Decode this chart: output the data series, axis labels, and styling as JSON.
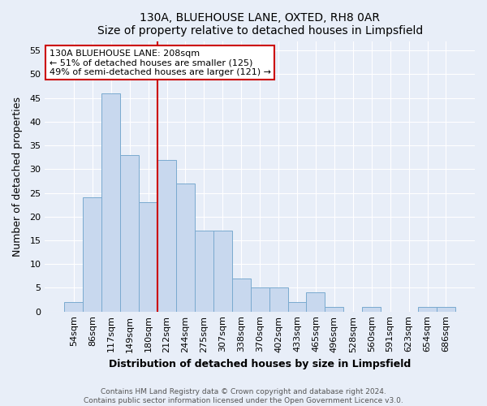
{
  "title": "130A, BLUEHOUSE LANE, OXTED, RH8 0AR",
  "subtitle": "Size of property relative to detached houses in Limpsfield",
  "xlabel": "Distribution of detached houses by size in Limpsfield",
  "ylabel": "Number of detached properties",
  "categories": [
    "54sqm",
    "86sqm",
    "117sqm",
    "149sqm",
    "180sqm",
    "212sqm",
    "244sqm",
    "275sqm",
    "307sqm",
    "338sqm",
    "370sqm",
    "402sqm",
    "433sqm",
    "465sqm",
    "496sqm",
    "528sqm",
    "560sqm",
    "591sqm",
    "623sqm",
    "654sqm",
    "686sqm"
  ],
  "values": [
    2,
    24,
    46,
    33,
    23,
    32,
    27,
    17,
    17,
    7,
    5,
    5,
    2,
    4,
    1,
    0,
    1,
    0,
    0,
    1,
    1
  ],
  "bar_color": "#c8d8ee",
  "bar_edge_color": "#7aaacf",
  "ylim": [
    0,
    57
  ],
  "yticks": [
    0,
    5,
    10,
    15,
    20,
    25,
    30,
    35,
    40,
    45,
    50,
    55
  ],
  "vline_color": "#cc0000",
  "vline_position": 4.5,
  "annotation_title": "130A BLUEHOUSE LANE: 208sqm",
  "annotation_line1": "← 51% of detached houses are smaller (125)",
  "annotation_line2": "49% of semi-detached houses are larger (121) →",
  "annotation_box_facecolor": "#ffffff",
  "annotation_box_edgecolor": "#cc0000",
  "footer_line1": "Contains HM Land Registry data © Crown copyright and database right 2024.",
  "footer_line2": "Contains public sector information licensed under the Open Government Licence v3.0.",
  "fig_facecolor": "#e8eef8",
  "plot_facecolor": "#e8eef8",
  "grid_color": "#ffffff",
  "title_fontsize": 10,
  "subtitle_fontsize": 9,
  "axis_label_fontsize": 9,
  "tick_fontsize": 8,
  "annotation_fontsize": 8,
  "footer_fontsize": 6.5
}
